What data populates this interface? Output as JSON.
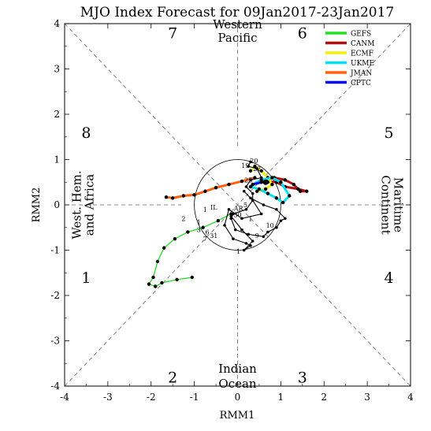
{
  "chart_data": {
    "type": "line",
    "title": "MJO Index Forecast for 09Jan2017-23Jan2017",
    "xlabel": "RMM1",
    "ylabel": "RMM2",
    "xlim": [
      -4,
      4
    ],
    "ylim": [
      -4,
      4
    ],
    "xticks": [
      "-4",
      "-3",
      "-2",
      "-1",
      "0",
      "1",
      "2",
      "3",
      "4"
    ],
    "yticks": [
      "-4",
      "-3",
      "-2",
      "-1",
      "0",
      "1",
      "2",
      "3",
      "4"
    ],
    "grid": "dashed phase diagonals",
    "unit_circle_radius": 1,
    "legend_position": "top-right",
    "phase_numbers": [
      {
        "label": "1",
        "x": -3.5,
        "y": -1.6
      },
      {
        "label": "2",
        "x": -1.5,
        "y": -3.8
      },
      {
        "label": "3",
        "x": 1.5,
        "y": -3.8
      },
      {
        "label": "4",
        "x": 3.5,
        "y": -1.6
      },
      {
        "label": "5",
        "x": 3.5,
        "y": 1.6
      },
      {
        "label": "6",
        "x": 1.5,
        "y": 3.8
      },
      {
        "label": "7",
        "x": -1.5,
        "y": 3.8
      },
      {
        "label": "8",
        "x": -3.5,
        "y": 1.6
      }
    ],
    "region_labels": {
      "top": [
        "Western",
        "Pacific"
      ],
      "bottom": [
        "Indian",
        "Ocean"
      ],
      "left": [
        "West. Hem.",
        "and Africa"
      ],
      "right": [
        "Maritime",
        "Continent"
      ]
    },
    "observed": {
      "name": "",
      "color": "#000000",
      "x": [
        0.3,
        0.25,
        0.45,
        0.55,
        0.3,
        0.2,
        0.35,
        0.35,
        0.2,
        -0.1,
        -0.15,
        -0.05,
        0.25,
        0.6,
        0.7,
        0.9,
        1.0,
        1.1,
        0.9,
        0.6,
        0.3,
        0.15,
        0.35,
        0.55,
        0.1,
        -0.2,
        -0.3,
        -0.1,
        0.2,
        0.3,
        0.15,
        0.35,
        0.1,
        -0.15
      ],
      "y": [
        0.95,
        0.85,
        0.8,
        0.6,
        0.55,
        0.4,
        0.25,
        0.1,
        -0.1,
        -0.2,
        -0.3,
        -0.55,
        -0.65,
        -0.7,
        -0.6,
        -0.5,
        -0.35,
        -0.3,
        -0.1,
        0.0,
        0.15,
        0.3,
        0.1,
        -0.2,
        -0.3,
        -0.1,
        -0.45,
        -0.75,
        -0.85,
        -0.9,
        -1.0,
        -0.8,
        -0.55,
        -0.25
      ]
    },
    "day_labels": [
      {
        "label": "20",
        "x": 0.38,
        "y": 0.97
      },
      {
        "label": "19",
        "x": 0.18,
        "y": 0.87
      },
      {
        "label": "22",
        "x": 0.45,
        "y": 0.8
      },
      {
        "label": "25",
        "x": 0.25,
        "y": 0.55
      },
      {
        "label": "AR",
        "x": 0.02,
        "y": -0.08
      },
      {
        "label": "IL",
        "x": -0.55,
        "y": -0.05
      },
      {
        "label": "1",
        "x": -0.75,
        "y": -0.1
      },
      {
        "label": "30",
        "x": 0.0,
        "y": -0.22
      },
      {
        "label": "1",
        "x": 0.3,
        "y": -0.3
      },
      {
        "label": "2",
        "x": -1.25,
        "y": -0.3
      },
      {
        "label": "5",
        "x": 0.18,
        "y": 0.0
      },
      {
        "label": "10",
        "x": 0.75,
        "y": -0.45
      },
      {
        "label": "31",
        "x": -0.55,
        "y": -0.68
      },
      {
        "label": "9",
        "x": 0.45,
        "y": -0.68
      },
      {
        "label": "6",
        "x": -0.7,
        "y": -0.6
      },
      {
        "label": "7",
        "x": -0.75,
        "y": -0.75
      },
      {
        "label": "3",
        "x": -0.9,
        "y": -0.55
      },
      {
        "label": "1",
        "x": 0.02,
        "y": -1.03
      },
      {
        "label": "1",
        "x": -0.9,
        "y": -0.38
      }
    ],
    "series": [
      {
        "name": "GEFS",
        "color": "#22dd22",
        "x": [
          -0.15,
          -0.45,
          -0.8,
          -1.15,
          -1.45,
          -1.7,
          -1.85,
          -1.95,
          -2.05,
          -1.9,
          -1.75,
          -1.4,
          -1.05
        ],
        "y": [
          -0.2,
          -0.35,
          -0.5,
          -0.6,
          -0.75,
          -0.95,
          -1.25,
          -1.6,
          -1.75,
          -1.8,
          -1.72,
          -1.65,
          -1.6
        ]
      },
      {
        "name": "CANM",
        "color": "#b01010",
        "x": [
          0.6,
          0.85,
          1.1,
          1.3,
          1.45,
          1.6,
          1.4,
          1.1,
          0.9,
          0.7
        ],
        "y": [
          0.55,
          0.6,
          0.55,
          0.45,
          0.3,
          0.3,
          0.35,
          0.4,
          0.5,
          0.52
        ]
      },
      {
        "name": "ECMF",
        "color": "#f0f000",
        "x": [
          0.3,
          0.4,
          0.55,
          0.7,
          0.8,
          0.65,
          0.45
        ],
        "y": [
          0.75,
          0.85,
          0.75,
          0.6,
          0.45,
          0.35,
          0.3
        ]
      },
      {
        "name": "UKME",
        "color": "#00e0ee",
        "x": [
          0.3,
          0.5,
          0.7,
          0.9,
          1.05,
          1.2,
          1.0,
          0.8,
          0.55,
          0.35
        ],
        "y": [
          0.4,
          0.35,
          0.25,
          0.15,
          0.05,
          0.2,
          0.5,
          0.6,
          0.55,
          0.45
        ]
      },
      {
        "name": "JMAN",
        "color": "#ff6010",
        "x": [
          0.4,
          0.1,
          -0.2,
          -0.5,
          -0.75,
          -1.0,
          -1.25,
          -1.5,
          -1.65
        ],
        "y": [
          0.6,
          0.52,
          0.45,
          0.38,
          0.3,
          0.22,
          0.2,
          0.15,
          0.17
        ]
      },
      {
        "name": "CPTC",
        "color": "#0000ee",
        "x": [
          0.35,
          0.55,
          0.7
        ],
        "y": [
          0.45,
          0.5,
          0.5
        ]
      }
    ]
  }
}
